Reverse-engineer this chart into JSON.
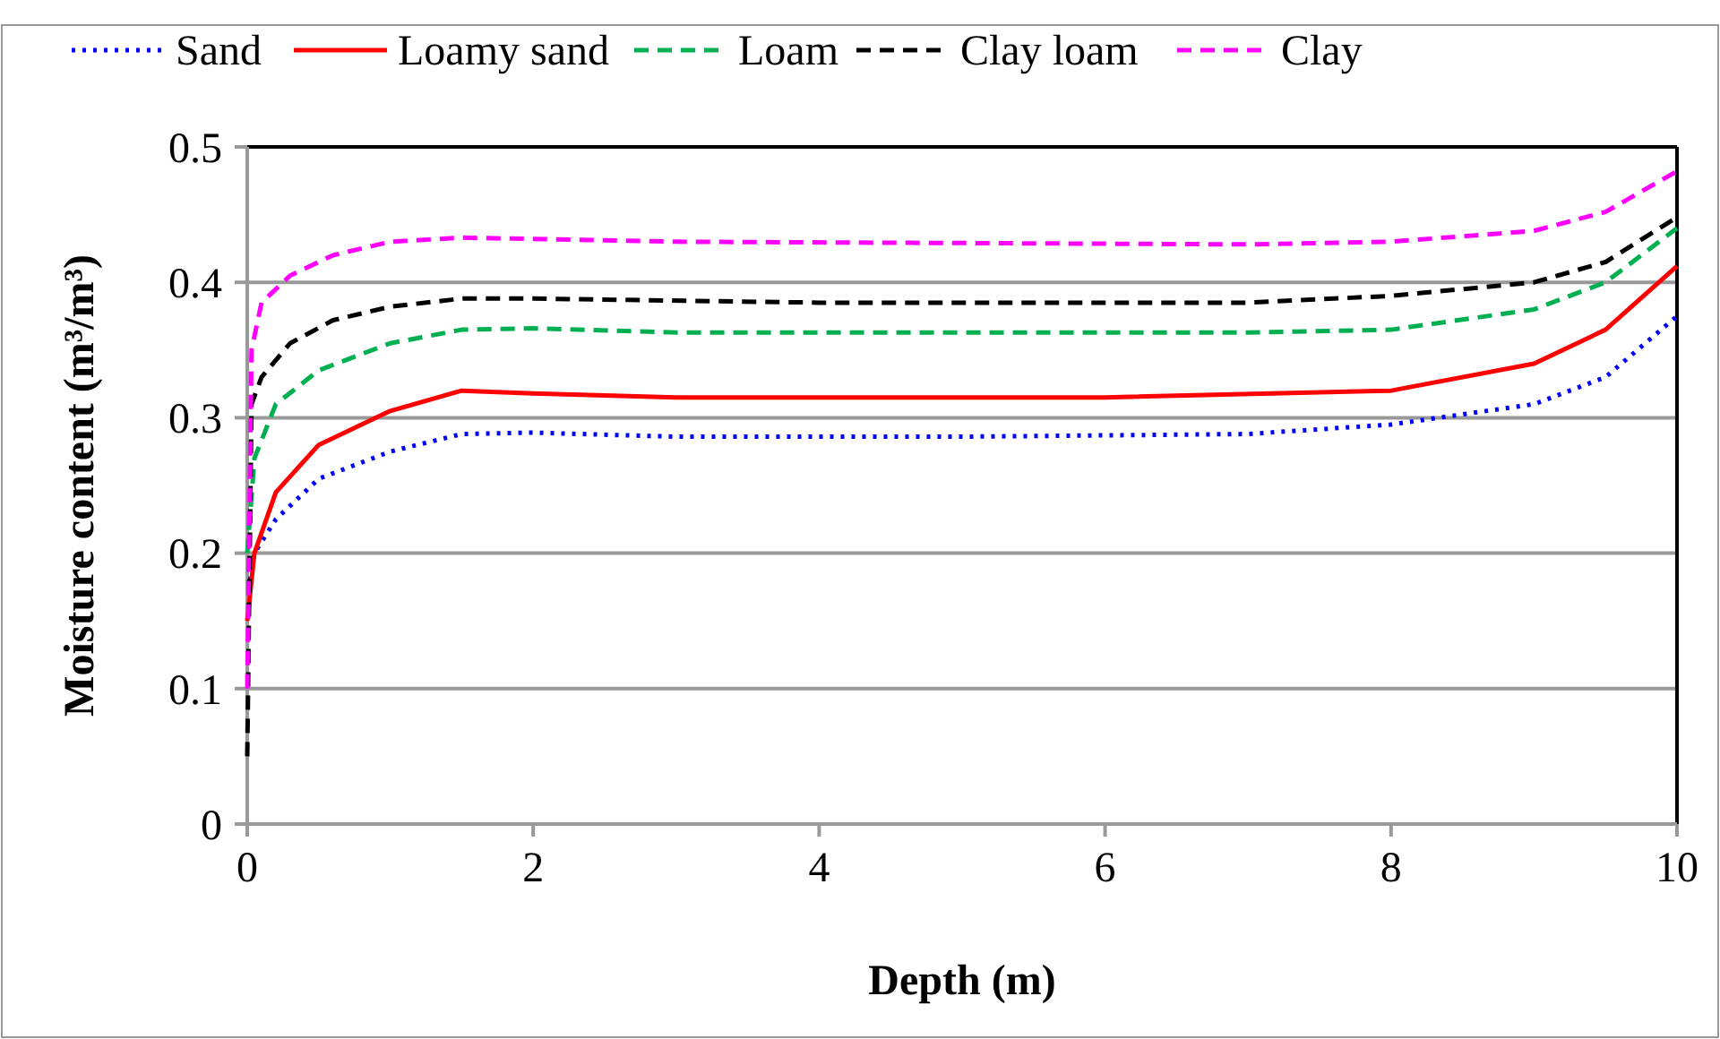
{
  "chart_data": {
    "type": "line",
    "xlabel": "Depth (m)",
    "ylabel": "Moisture content (m³/m³)",
    "xlim": [
      0,
      10
    ],
    "xticks": [
      0,
      2,
      4,
      6,
      8,
      10
    ],
    "ylim": [
      0,
      0.5
    ],
    "yticks": [
      0,
      0.1,
      0.2,
      0.3,
      0.4,
      0.5
    ],
    "grid": "y",
    "legend": "top",
    "marker": "none",
    "series": [
      {
        "name": "Sand",
        "color": "#0000ff",
        "line_style": "dotted",
        "x": [
          0.02,
          0.05,
          0.2,
          0.5,
          1,
          1.5,
          2,
          3,
          5,
          7,
          8,
          9,
          9.5,
          10
        ],
        "values": [
          0.18,
          0.2,
          0.225,
          0.255,
          0.275,
          0.288,
          0.289,
          0.286,
          0.286,
          0.288,
          0.295,
          0.31,
          0.33,
          0.375
        ]
      },
      {
        "name": "Loamy sand",
        "color": "#ff0000",
        "line_style": "solid",
        "x": [
          0,
          0.05,
          0.2,
          0.5,
          1,
          1.5,
          2,
          3,
          6,
          8,
          9,
          9.5,
          10
        ],
        "values": [
          0.15,
          0.2,
          0.245,
          0.28,
          0.305,
          0.32,
          0.318,
          0.315,
          0.315,
          0.32,
          0.34,
          0.365,
          0.412
        ]
      },
      {
        "name": "Loam",
        "color": "#00b050",
        "line_style": "dashed",
        "x": [
          0,
          0.05,
          0.2,
          0.5,
          1,
          1.5,
          2,
          3,
          7,
          8,
          9,
          9.5,
          10
        ],
        "values": [
          0.2,
          0.27,
          0.31,
          0.335,
          0.355,
          0.365,
          0.366,
          0.363,
          0.363,
          0.365,
          0.38,
          0.4,
          0.44
        ]
      },
      {
        "name": "Clay loam",
        "color": "#000000",
        "line_style": "dashed",
        "x": [
          0,
          0.03,
          0.1,
          0.3,
          0.6,
          1,
          1.5,
          2,
          4,
          7,
          8,
          9,
          9.5,
          10
        ],
        "values": [
          0.05,
          0.31,
          0.33,
          0.355,
          0.372,
          0.382,
          0.388,
          0.388,
          0.385,
          0.385,
          0.39,
          0.4,
          0.415,
          0.448
        ]
      },
      {
        "name": "Clay",
        "color": "#ff00ff",
        "line_style": "dashed",
        "x": [
          0,
          0.03,
          0.1,
          0.3,
          0.6,
          1,
          1.5,
          3,
          7,
          8,
          9,
          9.5,
          10
        ],
        "values": [
          0.1,
          0.35,
          0.385,
          0.405,
          0.42,
          0.43,
          0.433,
          0.43,
          0.428,
          0.43,
          0.438,
          0.452,
          0.482
        ]
      }
    ]
  }
}
